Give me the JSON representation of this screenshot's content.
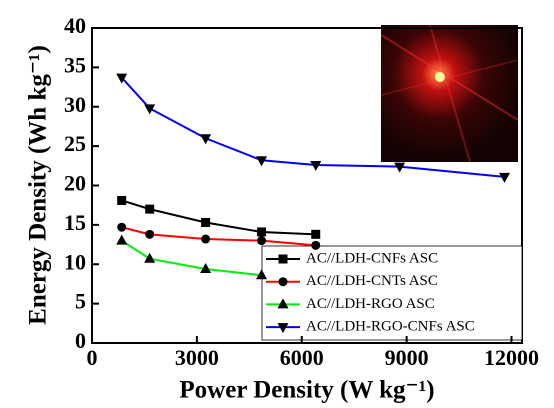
{
  "chart_data": {
    "type": "line",
    "x_label": "Power Density (W kg⁻¹)",
    "y_label": "Energy Density (Wh kg⁻¹)",
    "xlim": [
      0,
      12300
    ],
    "ylim": [
      0,
      40
    ],
    "xticks": [
      0,
      3000,
      6000,
      9000,
      12000
    ],
    "yticks": [
      0,
      5,
      10,
      15,
      20,
      25,
      30,
      35,
      40
    ],
    "legend_position": "lower right",
    "series": [
      {
        "name": "AC//LDH-CNFs ASC",
        "color": "#000000",
        "marker": "square",
        "x": [
          850,
          1650,
          3250,
          4850,
          6400
        ],
        "values": [
          18.1,
          17.0,
          15.3,
          14.1,
          13.8
        ]
      },
      {
        "name": "AC//LDH-CNTs ASC",
        "color": "#ff0000",
        "marker": "circle",
        "x": [
          850,
          1650,
          3250,
          4850,
          6400
        ],
        "values": [
          14.7,
          13.8,
          13.2,
          13.0,
          12.4
        ]
      },
      {
        "name": "AC//LDH-RGO ASC",
        "color": "#00ee00",
        "marker": "triangle-up",
        "x": [
          850,
          1650,
          3250,
          4850
        ],
        "values": [
          13.0,
          10.7,
          9.4,
          8.6
        ]
      },
      {
        "name": "AC//LDH-RGO-CNFs ASC",
        "color": "#0000ff",
        "marker": "triangle-down",
        "x": [
          850,
          1650,
          3250,
          4850,
          6400,
          8800,
          11800
        ],
        "values": [
          33.7,
          29.8,
          26.0,
          23.2,
          22.6,
          22.4,
          21.1
        ]
      }
    ]
  }
}
